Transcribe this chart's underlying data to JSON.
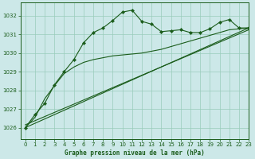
{
  "title": "Graphe pression niveau de la mer (hPa)",
  "background_color": "#cce8e8",
  "grid_color": "#99ccbb",
  "line_color": "#1a5c1a",
  "xlim": [
    -0.5,
    23
  ],
  "ylim": [
    1025.4,
    1032.7
  ],
  "yticks": [
    1026,
    1027,
    1028,
    1029,
    1030,
    1031,
    1032
  ],
  "xticks": [
    0,
    1,
    2,
    3,
    4,
    5,
    6,
    7,
    8,
    9,
    10,
    11,
    12,
    13,
    14,
    15,
    16,
    17,
    18,
    19,
    20,
    21,
    22,
    23
  ],
  "series_main": {
    "x": [
      0,
      1,
      2,
      3,
      4,
      5,
      6,
      7,
      8,
      9,
      10,
      11,
      12,
      13,
      14,
      15,
      16,
      17,
      18,
      19,
      20,
      21,
      22,
      23
    ],
    "y": [
      1026.0,
      1026.7,
      1027.3,
      1028.3,
      1029.0,
      1029.65,
      1030.55,
      1031.1,
      1031.35,
      1031.75,
      1032.2,
      1032.3,
      1031.7,
      1031.55,
      1031.15,
      1031.2,
      1031.25,
      1031.1,
      1031.1,
      1031.3,
      1031.65,
      1031.8,
      1031.35,
      1031.35
    ]
  },
  "series_smooth": {
    "x": [
      0,
      1,
      2,
      3,
      4,
      5,
      6,
      7,
      8,
      9,
      10,
      11,
      12,
      13,
      14,
      15,
      16,
      17,
      18,
      19,
      20,
      21,
      22,
      23
    ],
    "y": [
      1026.0,
      1026.55,
      1027.55,
      1028.25,
      1028.9,
      1029.25,
      1029.5,
      1029.65,
      1029.75,
      1029.85,
      1029.9,
      1029.95,
      1030.0,
      1030.1,
      1030.2,
      1030.35,
      1030.5,
      1030.65,
      1030.8,
      1030.95,
      1031.1,
      1031.25,
      1031.3,
      1031.35
    ]
  },
  "line_straight1": {
    "x": [
      0,
      23
    ],
    "y": [
      1026.0,
      1031.35
    ]
  },
  "line_straight2": {
    "x": [
      0,
      23
    ],
    "y": [
      1026.15,
      1031.25
    ]
  }
}
